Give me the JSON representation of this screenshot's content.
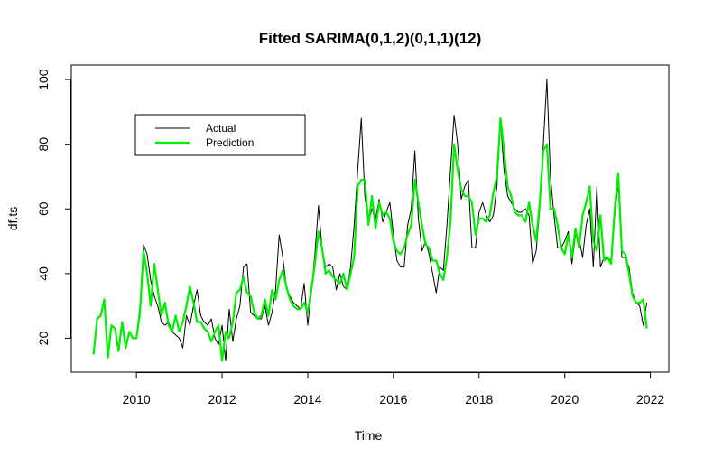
{
  "chart_data": {
    "type": "line",
    "title": "Fitted SARIMA(0,1,2)(0,1,1)(12)",
    "x_label": "Time",
    "y_label": "df.ts",
    "x": [
      2009,
      2009.083,
      2009.167,
      2009.25,
      2009.333,
      2009.417,
      2009.5,
      2009.583,
      2009.667,
      2009.75,
      2009.833,
      2009.917,
      2010,
      2010.083,
      2010.167,
      2010.25,
      2010.333,
      2010.417,
      2010.5,
      2010.583,
      2010.667,
      2010.75,
      2010.833,
      2010.917,
      2011,
      2011.083,
      2011.167,
      2011.25,
      2011.333,
      2011.417,
      2011.5,
      2011.583,
      2011.667,
      2011.75,
      2011.833,
      2011.917,
      2012,
      2012.083,
      2012.167,
      2012.25,
      2012.333,
      2012.417,
      2012.5,
      2012.583,
      2012.667,
      2012.75,
      2012.833,
      2012.917,
      2013,
      2013.083,
      2013.167,
      2013.25,
      2013.333,
      2013.417,
      2013.5,
      2013.583,
      2013.667,
      2013.75,
      2013.833,
      2013.917,
      2014,
      2014.083,
      2014.167,
      2014.25,
      2014.333,
      2014.417,
      2014.5,
      2014.583,
      2014.667,
      2014.75,
      2014.833,
      2014.917,
      2015,
      2015.083,
      2015.167,
      2015.25,
      2015.333,
      2015.417,
      2015.5,
      2015.583,
      2015.667,
      2015.75,
      2015.833,
      2015.917,
      2016,
      2016.083,
      2016.167,
      2016.25,
      2016.333,
      2016.417,
      2016.5,
      2016.583,
      2016.667,
      2016.75,
      2016.833,
      2016.917,
      2017,
      2017.083,
      2017.167,
      2017.25,
      2017.333,
      2017.417,
      2017.5,
      2017.583,
      2017.667,
      2017.75,
      2017.833,
      2017.917,
      2018,
      2018.083,
      2018.167,
      2018.25,
      2018.333,
      2018.417,
      2018.5,
      2018.583,
      2018.667,
      2018.75,
      2018.833,
      2018.917,
      2019,
      2019.083,
      2019.167,
      2019.25,
      2019.333,
      2019.417,
      2019.5,
      2019.583,
      2019.667,
      2019.75,
      2019.833,
      2019.917,
      2020,
      2020.083,
      2020.167,
      2020.25,
      2020.333,
      2020.417,
      2020.5,
      2020.583,
      2020.667,
      2020.75,
      2020.833,
      2020.917,
      2021,
      2021.083,
      2021.167,
      2021.25,
      2021.333,
      2021.417,
      2021.5,
      2021.583,
      2021.667,
      2021.75,
      2021.833,
      2021.917
    ],
    "series": [
      {
        "name": "Actual",
        "color": "#000000",
        "width": 1,
        "values": [
          15,
          26,
          27,
          32,
          14,
          24,
          23,
          16,
          25,
          17,
          22,
          20,
          20,
          30,
          49,
          46,
          38,
          33,
          30,
          25,
          24,
          25,
          22,
          21,
          20,
          17,
          27,
          24,
          30,
          35,
          27,
          25,
          24,
          26,
          20,
          18,
          24,
          13,
          29,
          19,
          26,
          30,
          42,
          43,
          28,
          27,
          26,
          26,
          30,
          24,
          28,
          35,
          52,
          45,
          36,
          33,
          31,
          30,
          29,
          37,
          24,
          34,
          46,
          61,
          48,
          42,
          43,
          42,
          35,
          40,
          36,
          35,
          42,
          55,
          72,
          88,
          64,
          56,
          60,
          57,
          63,
          56,
          59,
          62,
          52,
          44,
          42,
          42,
          55,
          60,
          78,
          57,
          47,
          50,
          46,
          40,
          34,
          42,
          41,
          55,
          72,
          89,
          80,
          63,
          67,
          69,
          48,
          48,
          59,
          62,
          58,
          56,
          58,
          67,
          87,
          72,
          64,
          62,
          60,
          59,
          59,
          60,
          58,
          43,
          47,
          60,
          80,
          100,
          70,
          58,
          48,
          48,
          50,
          53,
          43,
          52,
          51,
          45,
          55,
          60,
          42,
          67,
          42,
          45,
          45,
          44,
          58,
          68,
          45,
          45,
          42,
          34,
          31,
          30,
          24,
          31
        ]
      },
      {
        "name": "Prediction",
        "color": "#00ee00",
        "width": 2.2,
        "values": [
          15,
          26,
          27,
          32,
          14,
          24,
          23,
          16,
          25,
          17,
          22,
          20,
          20,
          28,
          47,
          40,
          30,
          43,
          35,
          27,
          31,
          24,
          22,
          27,
          22,
          25,
          30,
          36,
          31,
          25,
          25,
          23,
          22,
          19,
          22,
          24,
          13,
          22,
          20,
          25,
          34,
          35,
          39,
          34,
          33,
          28,
          26,
          27,
          32,
          27,
          35,
          32,
          38,
          41,
          36,
          32,
          30,
          29,
          29,
          31,
          28,
          35,
          43,
          53,
          48,
          40,
          41,
          39,
          38,
          37,
          40,
          35,
          40,
          45,
          67,
          69,
          69,
          55,
          64,
          54,
          62,
          58,
          59,
          57,
          50,
          47,
          46,
          48,
          52,
          55,
          69,
          62,
          55,
          49,
          48,
          44,
          44,
          40,
          38,
          45,
          56,
          80,
          72,
          66,
          64,
          64,
          62,
          52,
          57,
          57,
          56,
          58,
          65,
          70,
          88,
          78,
          67,
          64,
          59,
          58,
          58,
          56,
          62,
          55,
          50,
          62,
          78,
          80,
          60,
          60,
          55,
          48,
          46,
          52,
          45,
          54,
          48,
          58,
          62,
          67,
          50,
          47,
          58,
          44,
          45,
          43,
          60,
          71,
          47,
          46,
          40,
          33,
          31,
          31,
          32,
          23
        ]
      }
    ],
    "xlim": [
      2008.48,
      2022.43
    ],
    "ylim": [
      9.5,
      104.5
    ],
    "xticks": [
      2010,
      2012,
      2014,
      2016,
      2018,
      2020,
      2022
    ],
    "yticks": [
      20,
      40,
      60,
      80,
      100
    ],
    "legend": "top-left"
  }
}
